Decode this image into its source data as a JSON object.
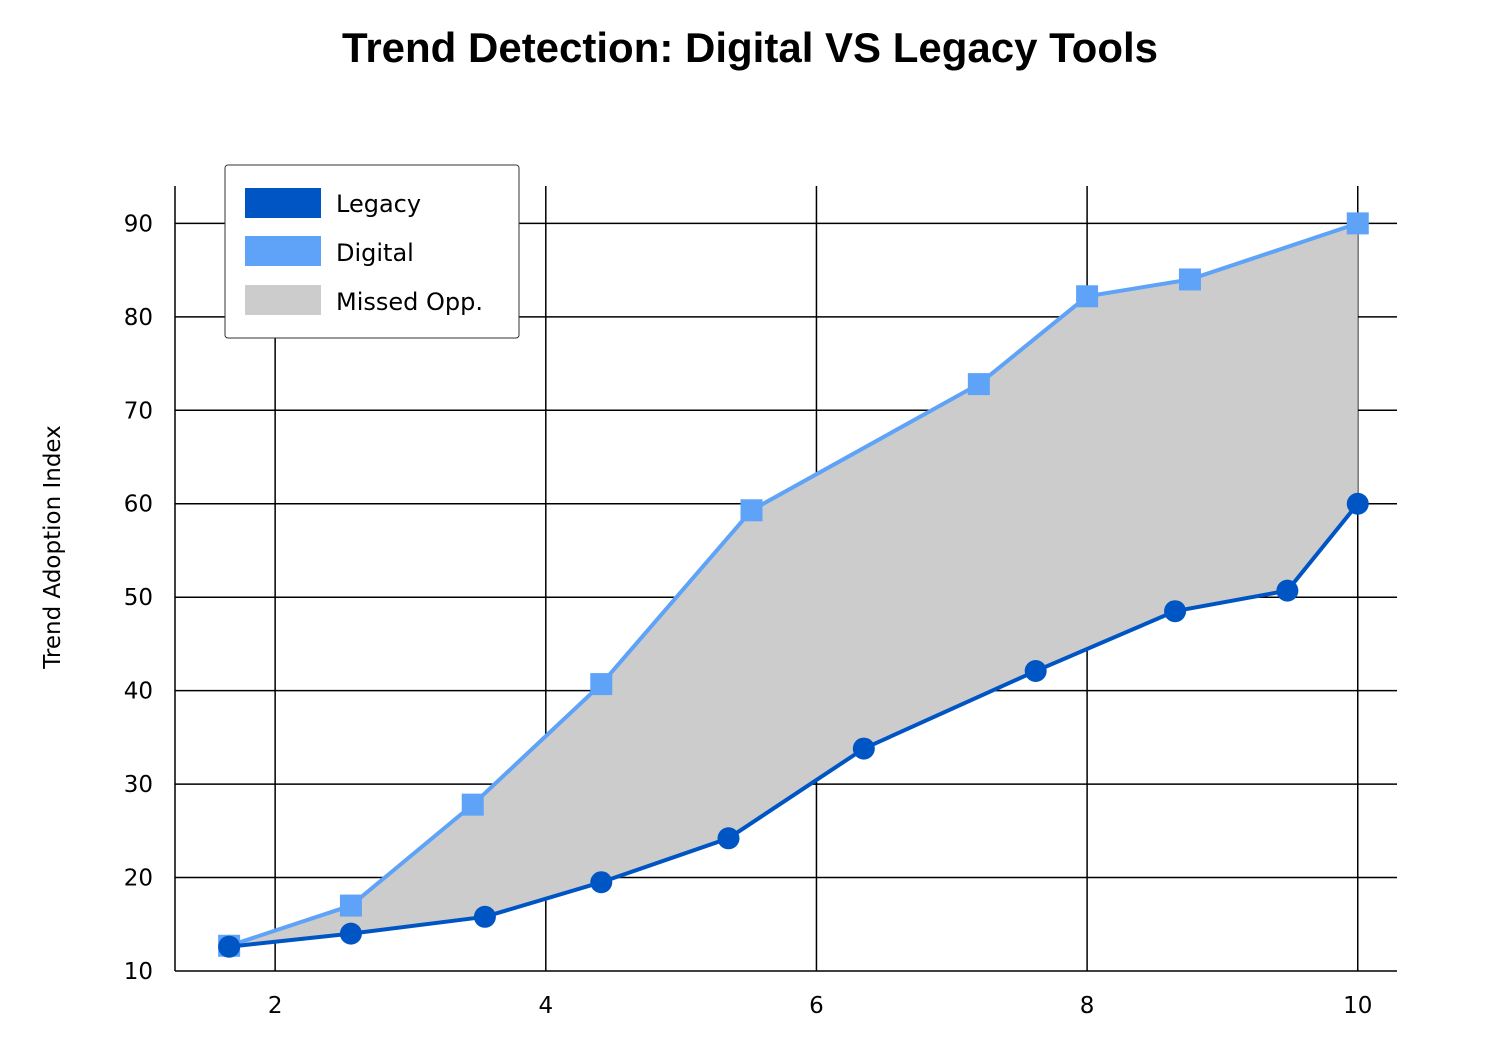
{
  "chart_data": {
    "type": "line",
    "title": "Trend Detection: Digital VS Legacy Tools",
    "xlabel": "",
    "ylabel": "Trend Adoption Index",
    "xlim": [
      1.26,
      10.29
    ],
    "ylim": [
      10,
      94
    ],
    "xticks": [
      2,
      4,
      6,
      8,
      10
    ],
    "yticks": [
      10,
      20,
      30,
      40,
      50,
      60,
      70,
      80,
      90
    ],
    "grid": true,
    "legend_position": "top-left",
    "series": [
      {
        "name": "Legacy",
        "color": "#0055c4",
        "marker": "circle",
        "x": [
          1.66,
          2.56,
          3.55,
          4.41,
          5.35,
          6.35,
          7.62,
          8.65,
          9.48,
          10
        ],
        "y": [
          12.6,
          14.0,
          15.8,
          19.5,
          24.2,
          33.8,
          42.1,
          48.5,
          50.7,
          60.0
        ]
      },
      {
        "name": "Digital",
        "color": "#5ea3f7",
        "marker": "square",
        "x": [
          1.66,
          2.56,
          3.46,
          4.41,
          5.52,
          7.2,
          8.0,
          8.76,
          10
        ],
        "y": [
          12.7,
          17.0,
          27.8,
          40.7,
          59.3,
          72.8,
          82.2,
          84.0,
          90.0
        ]
      }
    ],
    "fill": {
      "name": "Missed Opp.",
      "color": "#cccccc",
      "between": [
        "Legacy",
        "Digital"
      ]
    }
  }
}
